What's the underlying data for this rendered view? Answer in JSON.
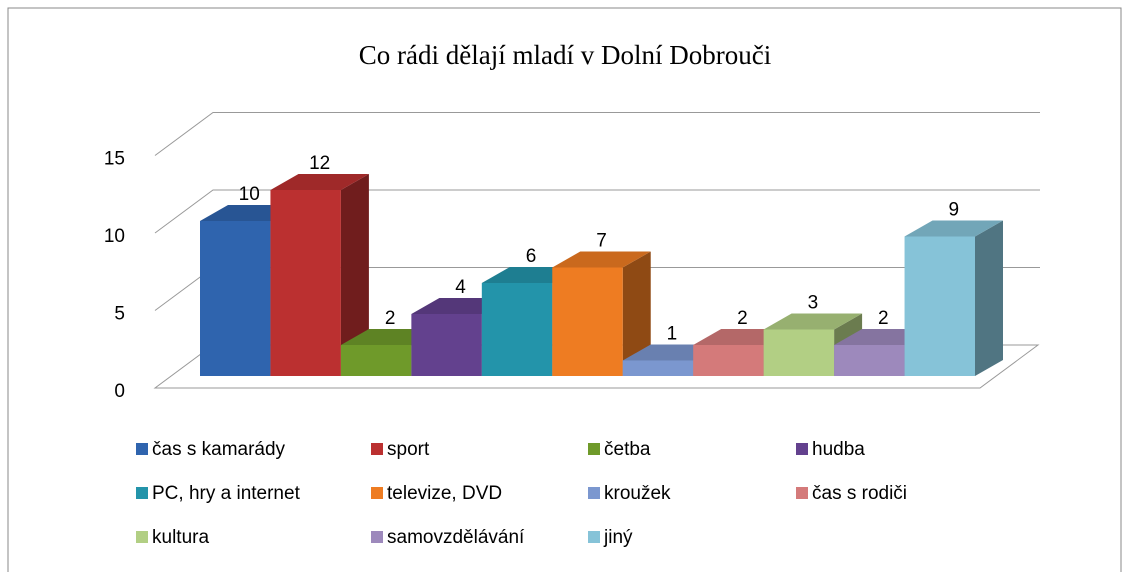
{
  "chart_data": {
    "type": "bar3d",
    "title": "Co rádi dělají mladí v Dolní Dobrouči",
    "ylim": [
      0,
      15
    ],
    "yticks": [
      0,
      5,
      10,
      15
    ],
    "grid": true,
    "legend": "bottom",
    "series": [
      {
        "name": "čas s kamarády",
        "color": "#2f64ae",
        "values": [
          10
        ]
      },
      {
        "name": "sport",
        "color": "#bb3030",
        "values": [
          12
        ]
      },
      {
        "name": "četba",
        "color": "#6f9a2a",
        "values": [
          2
        ]
      },
      {
        "name": "hudba",
        "color": "#63418e",
        "values": [
          4
        ]
      },
      {
        "name": "PC, hry a internet",
        "color": "#2394aa",
        "values": [
          6
        ]
      },
      {
        "name": "televize, DVD",
        "color": "#ee7c22",
        "values": [
          7
        ]
      },
      {
        "name": "kroužek",
        "color": "#7b97cf",
        "values": [
          1
        ]
      },
      {
        "name": "čas s rodiči",
        "color": "#d47a7a",
        "values": [
          2
        ]
      },
      {
        "name": "kultura",
        "color": "#b2cf84",
        "values": [
          3
        ]
      },
      {
        "name": "samovzdělávání",
        "color": "#9d89bc",
        "values": [
          2
        ]
      },
      {
        "name": "jiný",
        "color": "#86c3d8",
        "values": [
          9
        ]
      }
    ]
  }
}
